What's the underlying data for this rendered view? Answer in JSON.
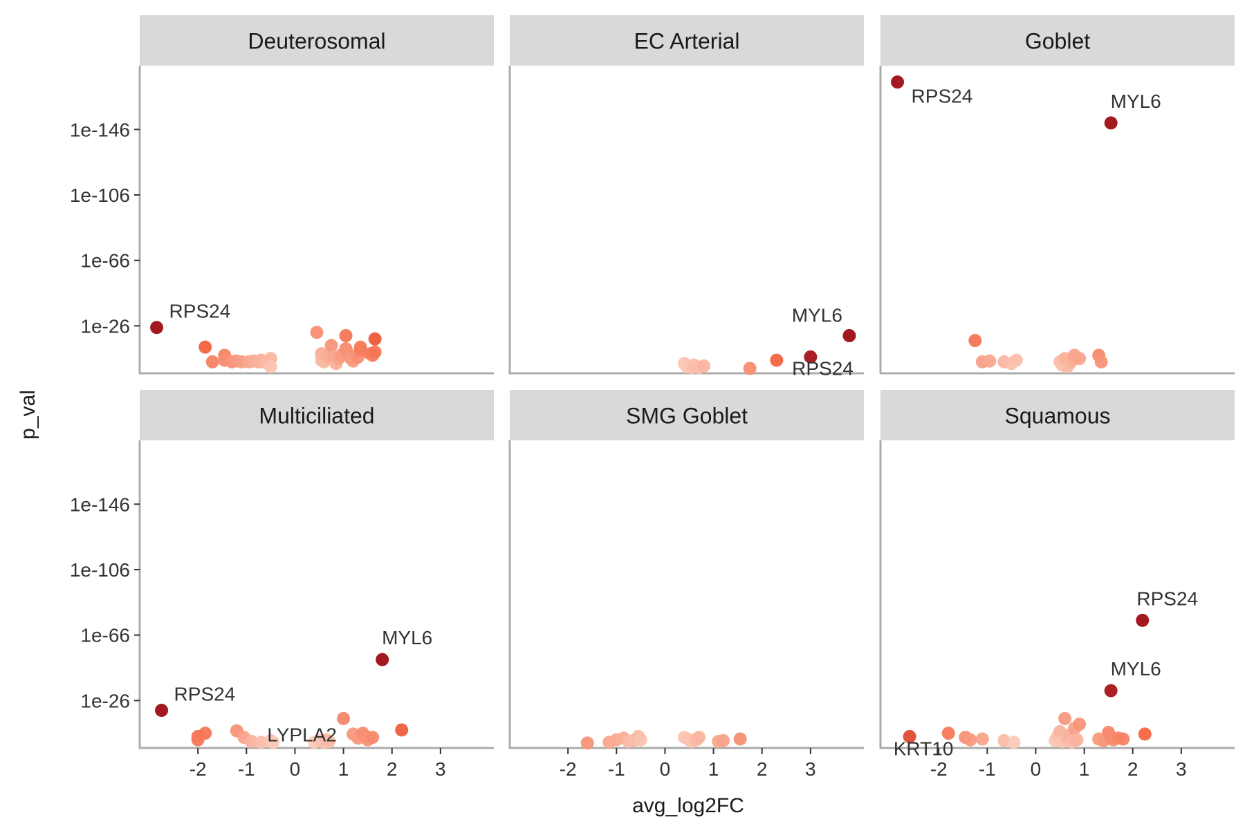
{
  "chart_data": {
    "type": "scatter",
    "layout": "facet-grid 2x3",
    "xlabel": "avg_log2FC",
    "ylabel": "p_val",
    "x_ticks": [
      "-2",
      "-1",
      "0",
      "1",
      "2",
      "3"
    ],
    "x_tick_values": [
      -2,
      -1,
      0,
      1,
      2,
      3
    ],
    "y_ticks": [
      "1e-146",
      "1e-106",
      "1e-66",
      "1e-26"
    ],
    "y_tick_values": [
      146,
      106,
      66,
      26
    ],
    "y_scale": "-log10(p_val)",
    "xlim": [
      -3.2,
      4.1
    ],
    "ylim": [
      -3,
      185
    ],
    "grid": false,
    "colors": {
      "low": "#fde0d2",
      "mid": "#f4633f",
      "high": "#9e0d14",
      "strip": "#d9d9d9",
      "axis": "#ababab"
    },
    "facets": [
      {
        "name": "Deuterosomal",
        "points": [
          [
            -2.85,
            25
          ],
          [
            -1.85,
            13
          ],
          [
            -1.7,
            4
          ],
          [
            -1.45,
            8
          ],
          [
            -1.45,
            5
          ],
          [
            -1.3,
            4
          ],
          [
            -1.2,
            4.5
          ],
          [
            -1.1,
            4
          ],
          [
            -0.95,
            4
          ],
          [
            -0.85,
            4.5
          ],
          [
            -0.75,
            4
          ],
          [
            -0.7,
            5
          ],
          [
            -0.6,
            3.5
          ],
          [
            -0.5,
            6
          ],
          [
            -0.5,
            1
          ],
          [
            0.45,
            22
          ],
          [
            0.55,
            9
          ],
          [
            0.55,
            5
          ],
          [
            0.6,
            4
          ],
          [
            0.65,
            7
          ],
          [
            0.75,
            14
          ],
          [
            0.8,
            7
          ],
          [
            0.85,
            3
          ],
          [
            0.9,
            6
          ],
          [
            0.95,
            8
          ],
          [
            1.05,
            20
          ],
          [
            1.05,
            12
          ],
          [
            1.1,
            9
          ],
          [
            1.15,
            6
          ],
          [
            1.2,
            4.5
          ],
          [
            1.3,
            7
          ],
          [
            1.35,
            11
          ],
          [
            1.35,
            13
          ],
          [
            1.55,
            9
          ],
          [
            1.6,
            8
          ],
          [
            1.65,
            10
          ],
          [
            1.65,
            18
          ]
        ],
        "labels": [
          {
            "text": "RPS24",
            "x": -2.85,
            "y": 25
          }
        ]
      },
      {
        "name": "EC Arterial",
        "points": [
          [
            0.4,
            3
          ],
          [
            0.45,
            1
          ],
          [
            0.55,
            0.5
          ],
          [
            0.6,
            2
          ],
          [
            0.65,
            1
          ],
          [
            0.7,
            0.5
          ],
          [
            0.8,
            1.5
          ],
          [
            1.75,
            0
          ],
          [
            2.3,
            5
          ],
          [
            3.0,
            7
          ],
          [
            3.8,
            20
          ]
        ],
        "labels": [
          {
            "text": "MYL6",
            "x": 3.8,
            "y": 20
          },
          {
            "text": "RPS24",
            "x": 3.0,
            "y": 7
          }
        ]
      },
      {
        "name": "Goblet",
        "points": [
          [
            -2.85,
            175
          ],
          [
            1.55,
            150
          ],
          [
            -1.25,
            17
          ],
          [
            -1.1,
            4
          ],
          [
            -0.95,
            4.5
          ],
          [
            -0.65,
            4
          ],
          [
            -0.5,
            3
          ],
          [
            -0.4,
            5
          ],
          [
            0.5,
            4
          ],
          [
            0.55,
            2
          ],
          [
            0.6,
            6
          ],
          [
            0.65,
            1
          ],
          [
            0.7,
            3
          ],
          [
            0.75,
            5
          ],
          [
            0.8,
            8
          ],
          [
            0.9,
            6
          ],
          [
            1.3,
            8
          ],
          [
            1.35,
            4
          ]
        ],
        "labels": [
          {
            "text": "RPS24",
            "x": -2.85,
            "y": 175
          },
          {
            "text": "MYL6",
            "x": 1.55,
            "y": 150
          }
        ]
      },
      {
        "name": "Multiciliated",
        "points": [
          [
            -2.75,
            20
          ],
          [
            1.8,
            51
          ],
          [
            1.0,
            15
          ],
          [
            2.2,
            8
          ],
          [
            -1.85,
            6
          ],
          [
            -2.0,
            4
          ],
          [
            -2.0,
            2
          ],
          [
            -1.2,
            7.5
          ],
          [
            -1.05,
            3.5
          ],
          [
            -0.9,
            1
          ],
          [
            -0.7,
            0.5
          ],
          [
            -0.5,
            1.5
          ],
          [
            -0.45,
            0.5
          ],
          [
            0.4,
            0.5
          ],
          [
            0.5,
            1.5
          ],
          [
            0.6,
            0.5
          ],
          [
            0.65,
            2
          ],
          [
            0.7,
            1
          ],
          [
            1.2,
            5.5
          ],
          [
            1.3,
            3
          ],
          [
            1.4,
            6
          ],
          [
            1.45,
            4
          ],
          [
            1.5,
            2
          ],
          [
            1.6,
            3.5
          ]
        ],
        "labels": [
          {
            "text": "RPS24",
            "x": -2.75,
            "y": 20
          },
          {
            "text": "MYL6",
            "x": 1.8,
            "y": 51
          },
          {
            "text": "LYPLA2",
            "x": 1.0,
            "y": 15
          }
        ]
      },
      {
        "name": "SMG Goblet",
        "points": [
          [
            -1.6,
            0
          ],
          [
            -1.15,
            0.5
          ],
          [
            -1.0,
            2
          ],
          [
            -0.85,
            3
          ],
          [
            -0.75,
            1
          ],
          [
            -0.65,
            1.5
          ],
          [
            -0.55,
            4
          ],
          [
            -0.5,
            2
          ],
          [
            0.4,
            3.5
          ],
          [
            0.5,
            2
          ],
          [
            0.55,
            1
          ],
          [
            0.65,
            2
          ],
          [
            0.7,
            3.5
          ],
          [
            1.1,
            1
          ],
          [
            1.2,
            1.5
          ],
          [
            1.55,
            2.5
          ]
        ],
        "labels": []
      },
      {
        "name": "Squamous",
        "points": [
          [
            2.2,
            75
          ],
          [
            1.55,
            32
          ],
          [
            -2.6,
            4
          ],
          [
            -1.8,
            6
          ],
          [
            -1.45,
            3.5
          ],
          [
            -1.35,
            2
          ],
          [
            -1.1,
            2.5
          ],
          [
            -0.65,
            1.5
          ],
          [
            -0.45,
            0.5
          ],
          [
            0.4,
            1.5
          ],
          [
            0.45,
            4
          ],
          [
            0.5,
            7
          ],
          [
            0.55,
            1
          ],
          [
            0.6,
            15
          ],
          [
            0.65,
            3
          ],
          [
            0.7,
            5
          ],
          [
            0.75,
            0.5
          ],
          [
            0.8,
            9
          ],
          [
            0.85,
            2
          ],
          [
            0.9,
            11.5
          ],
          [
            1.3,
            2.5
          ],
          [
            1.4,
            1.5
          ],
          [
            1.5,
            6.5
          ],
          [
            1.55,
            3.5
          ],
          [
            1.6,
            2
          ],
          [
            1.7,
            3
          ],
          [
            1.8,
            2.5
          ],
          [
            2.25,
            5.5
          ]
        ],
        "labels": [
          {
            "text": "RPS24",
            "x": 2.2,
            "y": 75
          },
          {
            "text": "MYL6",
            "x": 1.55,
            "y": 32
          },
          {
            "text": "KRT10",
            "x": -2.6,
            "y": 4
          }
        ]
      }
    ]
  }
}
